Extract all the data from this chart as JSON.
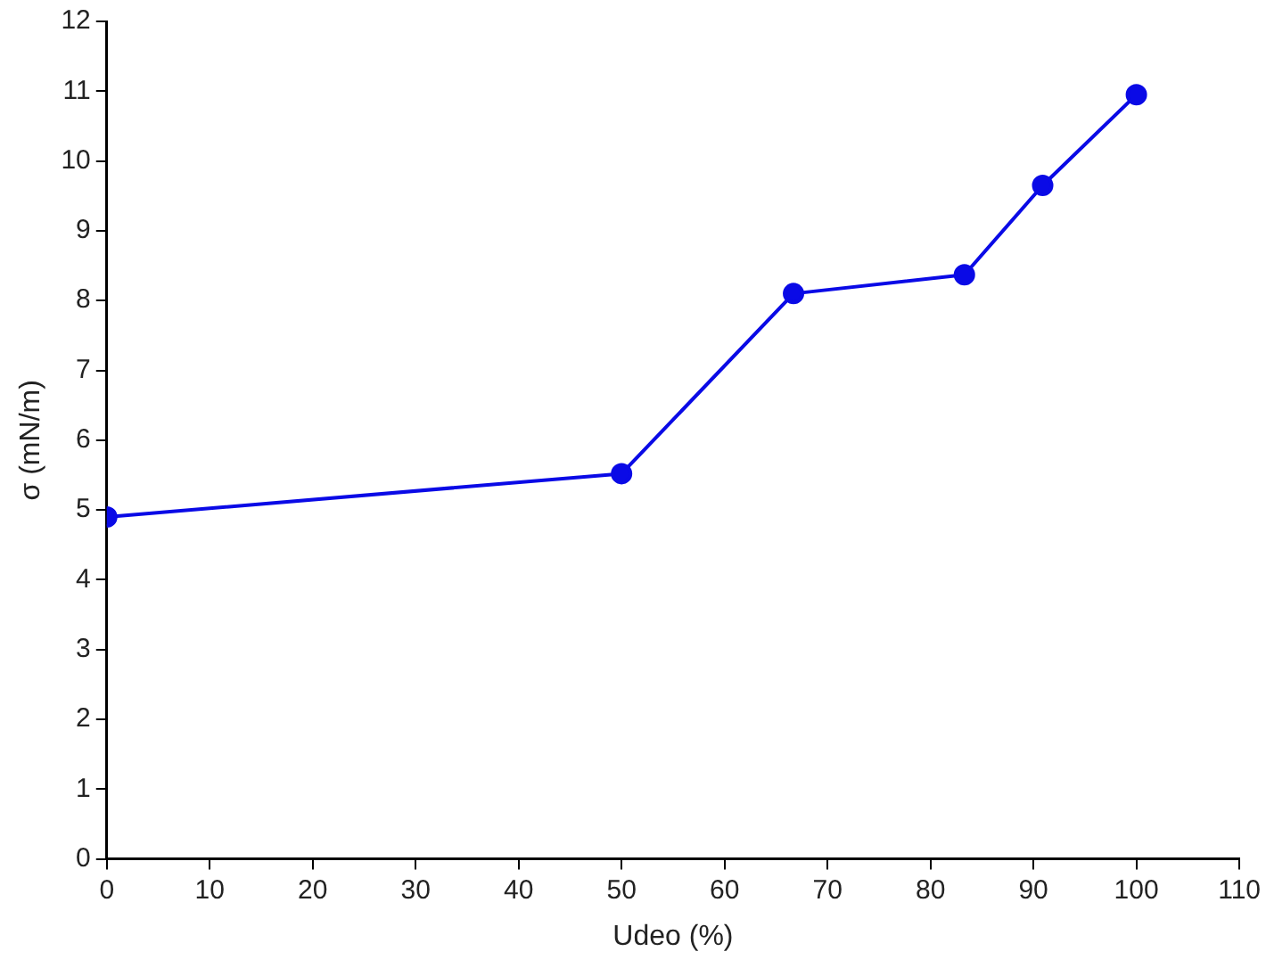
{
  "chart_data": {
    "type": "line",
    "xlabel": "Udeo (%)",
    "ylabel": "σ (mN/m)",
    "x": [
      0,
      50,
      66.7,
      83.3,
      90.9,
      100
    ],
    "series": [
      {
        "color": "#0a0ae6",
        "values": [
          4.9,
          5.52,
          8.1,
          8.37,
          9.65,
          10.95
        ]
      }
    ],
    "xlim": [
      0,
      110
    ],
    "xticks": [
      0,
      10,
      20,
      30,
      40,
      50,
      60,
      70,
      80,
      90,
      100,
      110
    ],
    "ylim": [
      0,
      12
    ],
    "yticks": [
      0,
      1,
      2,
      3,
      4,
      5,
      6,
      7,
      8,
      9,
      10,
      11,
      12
    ],
    "grid": false,
    "legend": false,
    "marker": "circle",
    "line_style": "solid"
  }
}
